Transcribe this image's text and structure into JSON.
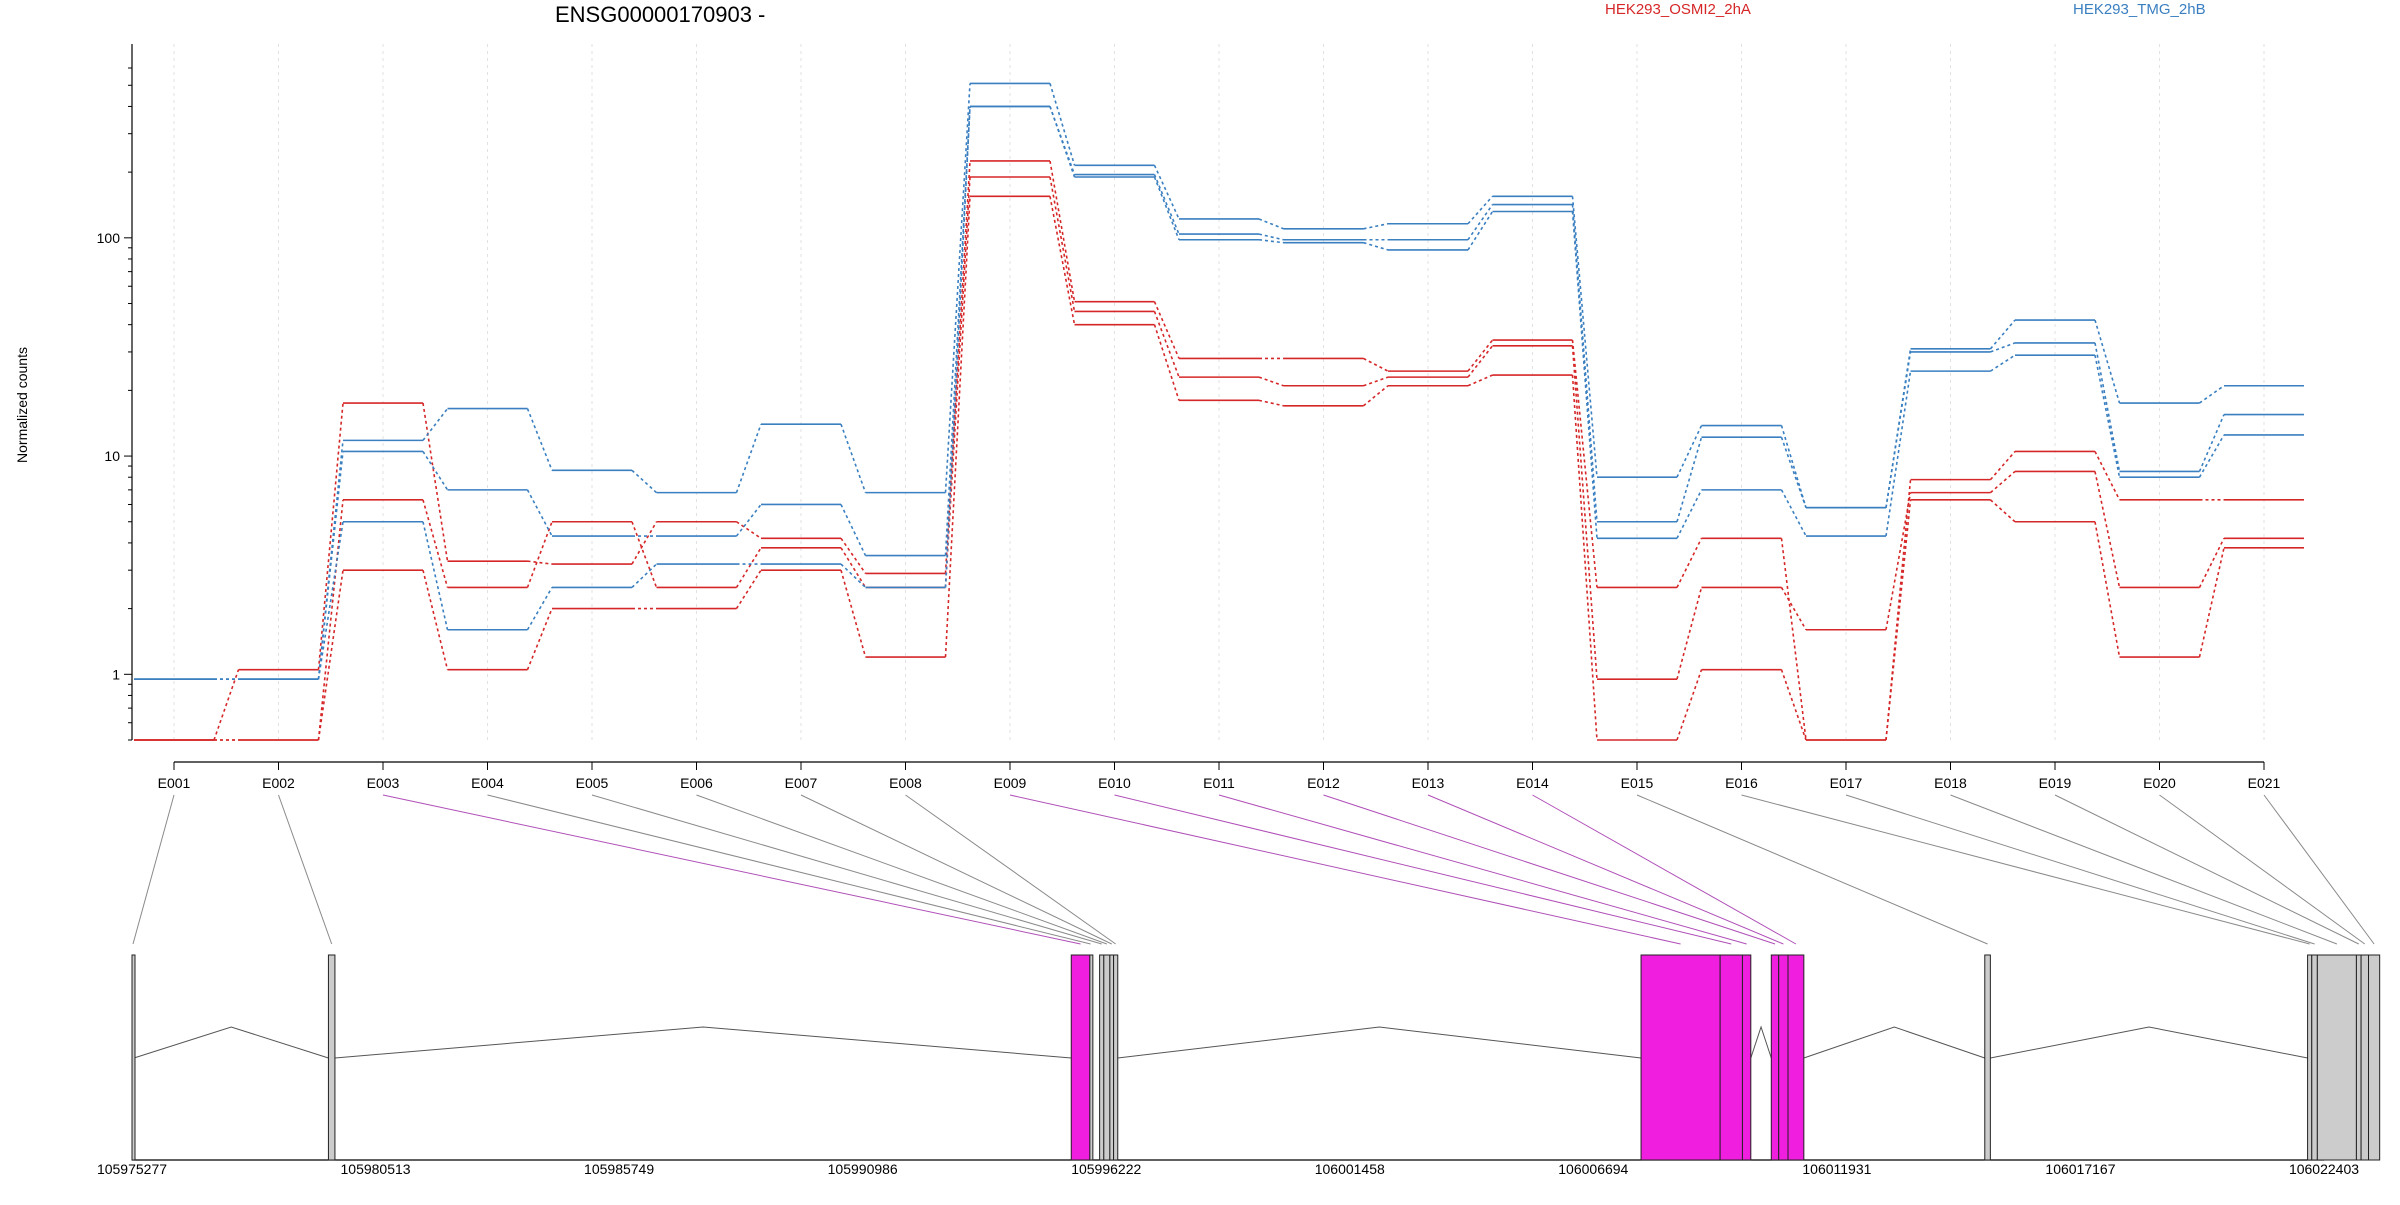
{
  "chart_data": {
    "type": "line",
    "title": "ENSG00000170903 -",
    "ylabel": "Normalized counts",
    "xlabel": "",
    "y_scale": "log",
    "ylim": [
      0.5,
      600
    ],
    "y_ticks": [
      {
        "value": 1,
        "label": "1"
      },
      {
        "value": 10,
        "label": "10"
      },
      {
        "value": 100,
        "label": "100"
      }
    ],
    "grid": "vertical dotted lines at each exon bin",
    "legend": [
      {
        "name": "HEK293_OSMI2_2hA",
        "color": "#d62728"
      },
      {
        "name": "HEK293_TMG_2hB",
        "color": "#3a7fc0"
      }
    ],
    "categories": [
      "E001",
      "E002",
      "E003",
      "E004",
      "E005",
      "E006",
      "E007",
      "E008",
      "E009",
      "E010",
      "E011",
      "E012",
      "E013",
      "E014",
      "E015",
      "E016",
      "E017",
      "E018",
      "E019",
      "E020",
      "E021"
    ],
    "series": [
      {
        "group": "HEK293_OSMI2_2hA",
        "color": "#d62728",
        "values": [
          0.5,
          1.05,
          17.5,
          3.3,
          3.2,
          5.0,
          4.2,
          2.9,
          225,
          51,
          28,
          28,
          24.5,
          34,
          2.5,
          4.2,
          0.5,
          7.8,
          10.5,
          6.3,
          6.3
        ]
      },
      {
        "group": "HEK293_OSMI2_2hA",
        "color": "#d62728",
        "values": [
          0.5,
          0.5,
          6.3,
          2.5,
          5.0,
          2.5,
          3.8,
          2.5,
          190,
          46,
          23,
          21,
          23,
          32,
          0.95,
          2.5,
          1.6,
          6.8,
          8.5,
          2.5,
          4.2
        ]
      },
      {
        "group": "HEK293_OSMI2_2hA",
        "color": "#d62728",
        "values": [
          0.5,
          0.5,
          3.0,
          1.05,
          2.0,
          2.0,
          3.0,
          1.2,
          155,
          40,
          18,
          17,
          21,
          23.5,
          0.5,
          1.05,
          0.5,
          6.3,
          5.0,
          1.2,
          3.8
        ]
      },
      {
        "group": "HEK293_TMG_2hB",
        "color": "#3a7fc0",
        "values": [
          0.95,
          0.95,
          11.8,
          16.5,
          8.6,
          6.8,
          14,
          6.8,
          510,
          215,
          122,
          110,
          116,
          155,
          8.0,
          13.8,
          5.8,
          31,
          42,
          17.5,
          21
        ]
      },
      {
        "group": "HEK293_TMG_2hB",
        "color": "#3a7fc0",
        "values": [
          0.95,
          0.95,
          10.5,
          7.0,
          4.3,
          4.3,
          6.0,
          3.5,
          400,
          195,
          104,
          98,
          98,
          142,
          5.0,
          12.2,
          5.8,
          30,
          33,
          8.5,
          15.5
        ]
      },
      {
        "group": "HEK293_TMG_2hB",
        "color": "#3a7fc0",
        "values": [
          0.95,
          0.95,
          5.0,
          1.6,
          2.5,
          3.2,
          3.2,
          2.5,
          400,
          190,
          98,
          95,
          88,
          132,
          4.2,
          7.0,
          4.3,
          24.5,
          29,
          8.0,
          12.5
        ]
      }
    ],
    "gene_model": {
      "genomic_ticks": [
        {
          "value": 105975277,
          "label": "105975277"
        },
        {
          "value": 105980513,
          "label": "105980513"
        },
        {
          "value": 105985749,
          "label": "105985749"
        },
        {
          "value": 105990986,
          "label": "105990986"
        },
        {
          "value": 105996222,
          "label": "105996222"
        },
        {
          "value": 106001458,
          "label": "106001458"
        },
        {
          "value": 106006694,
          "label": "106006694"
        },
        {
          "value": 106011931,
          "label": "106011931"
        },
        {
          "value": 106017167,
          "label": "106017167"
        },
        {
          "value": 106022403,
          "label": "106022403"
        }
      ],
      "domain": [
        105975277,
        106022403
      ],
      "bins": [
        {
          "id": "E001",
          "start": 105975277,
          "end": 105975320,
          "significant": false
        },
        {
          "id": "E002",
          "start": 105979500,
          "end": 105979640,
          "significant": false
        },
        {
          "id": "E003",
          "start": 105995470,
          "end": 105995870,
          "significant": true
        },
        {
          "id": "E004",
          "start": 105995870,
          "end": 105995900,
          "significant": false
        },
        {
          "id": "E005",
          "start": 105996080,
          "end": 105996170,
          "significant": false
        },
        {
          "id": "E006",
          "start": 105996170,
          "end": 105996300,
          "significant": false
        },
        {
          "id": "E007",
          "start": 105996300,
          "end": 105996380,
          "significant": false
        },
        {
          "id": "E008",
          "start": 105996380,
          "end": 105996470,
          "significant": false
        },
        {
          "id": "E009",
          "start": 106007720,
          "end": 106009420,
          "significant": true
        },
        {
          "id": "E010",
          "start": 106009420,
          "end": 106009900,
          "significant": true
        },
        {
          "id": "E011",
          "start": 106009900,
          "end": 106010080,
          "significant": true
        },
        {
          "id": "E012",
          "start": 106010520,
          "end": 106010680,
          "significant": true
        },
        {
          "id": "E013",
          "start": 106010680,
          "end": 106010880,
          "significant": true
        },
        {
          "id": "E014",
          "start": 106010880,
          "end": 106011220,
          "significant": true
        },
        {
          "id": "E015",
          "start": 106015110,
          "end": 106015230,
          "significant": false
        },
        {
          "id": "E016",
          "start": 106022050,
          "end": 106022140,
          "significant": false
        },
        {
          "id": "E017",
          "start": 106022140,
          "end": 106022260,
          "significant": false
        },
        {
          "id": "E018",
          "start": 106022260,
          "end": 106023100,
          "significant": false
        },
        {
          "id": "E019",
          "start": 106023100,
          "end": 106023200,
          "significant": false
        },
        {
          "id": "E020",
          "start": 106023200,
          "end": 106023360,
          "significant": false
        },
        {
          "id": "E021",
          "start": 106023360,
          "end": 106023600,
          "significant": false
        }
      ]
    }
  }
}
